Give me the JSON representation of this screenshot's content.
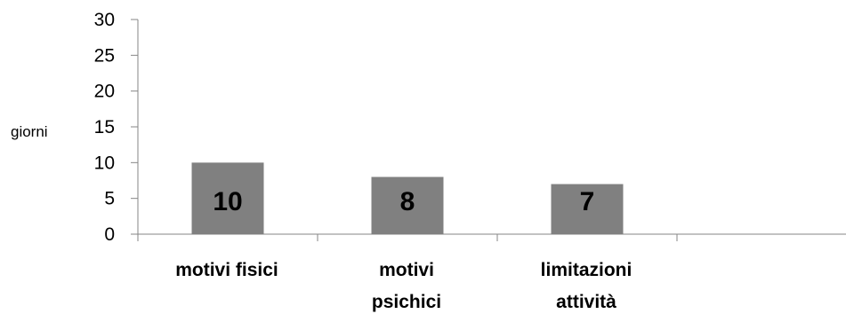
{
  "chart_data": {
    "type": "bar",
    "categories": [
      [
        "motivi fisici"
      ],
      [
        "motivi",
        "psichici"
      ],
      [
        "limitazioni",
        "attività"
      ],
      [
        ""
      ]
    ],
    "values": [
      10,
      8,
      7,
      null
    ],
    "data_labels": [
      "10",
      "8",
      "7",
      ""
    ],
    "ylabel": "giorni",
    "xlabel": "",
    "ylim": [
      0,
      30
    ],
    "yticks": [
      0,
      5,
      10,
      15,
      20,
      25,
      30
    ],
    "yticks_labels": [
      "0",
      "5",
      "10",
      "15",
      "20",
      "25",
      "30"
    ],
    "grid": false,
    "legend": "none",
    "colors": {
      "bar": "#808080",
      "axis": "#868686"
    }
  }
}
